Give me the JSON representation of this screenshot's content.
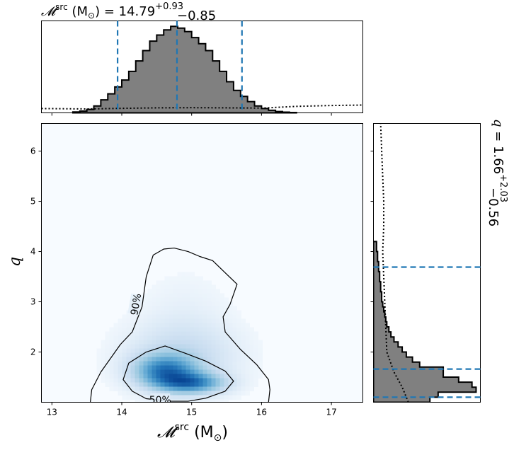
{
  "chart_data": {
    "type": "corner",
    "title_top": {
      "symbol": "𝓜",
      "superscript": "src",
      "unit": "(M",
      "unit_sub": "⊙",
      "unit_close": ")",
      "equals": "= 14.79",
      "plus": "+0.93",
      "minus": "−0.85"
    },
    "title_right": {
      "symbol": "q",
      "equals": "= 1.66",
      "plus": "+2.03",
      "minus": "−0.56"
    },
    "xlabel": {
      "symbol": "𝓜",
      "superscript": "src",
      "unit": "(M",
      "unit_sub": "⊙",
      "unit_close": ")"
    },
    "ylabel": "q",
    "xlim": [
      12.85,
      17.45
    ],
    "ylim": [
      1.0,
      6.55
    ],
    "xticks": [
      13,
      14,
      15,
      16,
      17
    ],
    "yticks": [
      2,
      3,
      4,
      5,
      6
    ],
    "mchirp_quantiles": [
      13.94,
      14.79,
      15.72
    ],
    "q_quantiles": [
      1.1,
      1.66,
      3.69
    ],
    "mchirp_hist": {
      "edges": [
        13.3,
        13.4,
        13.5,
        13.6,
        13.7,
        13.8,
        13.9,
        14.0,
        14.1,
        14.2,
        14.3,
        14.4,
        14.5,
        14.6,
        14.7,
        14.8,
        14.9,
        15.0,
        15.1,
        15.2,
        15.3,
        15.4,
        15.5,
        15.6,
        15.7,
        15.8,
        15.9,
        16.0,
        16.1,
        16.2,
        16.3,
        16.4,
        16.5
      ],
      "heights": [
        0.01,
        0.02,
        0.04,
        0.08,
        0.15,
        0.22,
        0.3,
        0.38,
        0.48,
        0.6,
        0.72,
        0.83,
        0.9,
        0.96,
        1.0,
        0.98,
        0.94,
        0.87,
        0.8,
        0.72,
        0.6,
        0.48,
        0.36,
        0.26,
        0.19,
        0.13,
        0.08,
        0.05,
        0.03,
        0.015,
        0.008,
        0.004
      ]
    },
    "mchirp_prior": {
      "x": [
        12.85,
        13.5,
        14.0,
        14.5,
        15.0,
        15.5,
        16.0,
        16.5,
        17.0,
        17.45
      ],
      "y": [
        0.05,
        0.045,
        0.052,
        0.058,
        0.06,
        0.058,
        0.055,
        0.075,
        0.085,
        0.09
      ]
    },
    "q_hist": {
      "edges": [
        1.0,
        1.1,
        1.2,
        1.3,
        1.4,
        1.5,
        1.6,
        1.7,
        1.8,
        1.9,
        2.0,
        2.1,
        2.2,
        2.3,
        2.4,
        2.5,
        2.6,
        2.7,
        2.8,
        2.9,
        3.0,
        3.2,
        3.4,
        3.6,
        3.8,
        4.0,
        4.2
      ],
      "heights": [
        0.55,
        0.63,
        1.0,
        0.96,
        0.83,
        0.68,
        0.68,
        0.45,
        0.38,
        0.32,
        0.28,
        0.24,
        0.2,
        0.17,
        0.15,
        0.13,
        0.12,
        0.11,
        0.1,
        0.09,
        0.08,
        0.07,
        0.06,
        0.05,
        0.04,
        0.03
      ]
    },
    "q_prior": {
      "y": [
        1.0,
        1.3,
        1.6,
        2.0,
        2.5,
        3.0,
        3.5,
        4.0,
        4.5,
        5.0,
        5.5,
        6.0,
        6.55
      ],
      "x": [
        0.34,
        0.28,
        0.2,
        0.13,
        0.12,
        0.11,
        0.1,
        0.09,
        0.1,
        0.1,
        0.09,
        0.08,
        0.07
      ]
    },
    "density_blobs": [
      {
        "x": 14.62,
        "y": 1.62,
        "sx": 0.3,
        "sy": 0.22,
        "w": 1.0
      },
      {
        "x": 15.0,
        "y": 1.38,
        "sx": 0.32,
        "sy": 0.14,
        "w": 1.0
      },
      {
        "x": 14.85,
        "y": 1.9,
        "sx": 0.55,
        "sy": 0.45,
        "w": 0.3
      },
      {
        "x": 14.9,
        "y": 2.6,
        "sx": 0.45,
        "sy": 0.7,
        "w": 0.08
      }
    ],
    "contours": [
      {
        "label": "90%",
        "label_pos": [
          14.2,
          2.95
        ],
        "label_rotation": -80,
        "points": [
          [
            13.55,
            1.0
          ],
          [
            13.57,
            1.25
          ],
          [
            13.7,
            1.6
          ],
          [
            13.98,
            2.15
          ],
          [
            14.15,
            2.4
          ],
          [
            14.29,
            2.9
          ],
          [
            14.35,
            3.5
          ],
          [
            14.45,
            3.93
          ],
          [
            14.6,
            4.05
          ],
          [
            14.75,
            4.07
          ],
          [
            14.95,
            4.0
          ],
          [
            15.12,
            3.9
          ],
          [
            15.3,
            3.82
          ],
          [
            15.5,
            3.55
          ],
          [
            15.65,
            3.35
          ],
          [
            15.55,
            2.95
          ],
          [
            15.45,
            2.7
          ],
          [
            15.48,
            2.4
          ],
          [
            15.7,
            2.05
          ],
          [
            15.93,
            1.75
          ],
          [
            16.1,
            1.45
          ],
          [
            16.12,
            1.25
          ],
          [
            16.1,
            1.0
          ]
        ]
      },
      {
        "label": "50%",
        "label_pos": [
          14.55,
          1.05
        ],
        "label_rotation": 0,
        "points": [
          [
            14.35,
            1.07
          ],
          [
            14.15,
            1.22
          ],
          [
            14.02,
            1.45
          ],
          [
            14.1,
            1.78
          ],
          [
            14.35,
            2.0
          ],
          [
            14.62,
            2.12
          ],
          [
            14.9,
            1.98
          ],
          [
            15.2,
            1.82
          ],
          [
            15.48,
            1.62
          ],
          [
            15.6,
            1.42
          ],
          [
            15.48,
            1.22
          ],
          [
            15.2,
            1.08
          ],
          [
            14.95,
            1.02
          ],
          [
            14.7,
            1.02
          ]
        ]
      }
    ]
  }
}
